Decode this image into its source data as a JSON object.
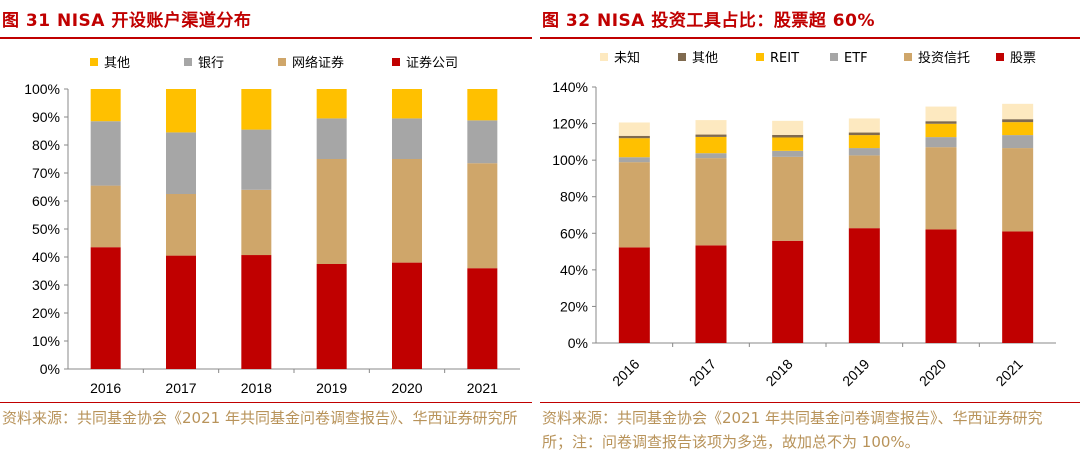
{
  "left": {
    "title": "图 31  NISA 开设账户渠道分布",
    "source": "资料来源：共同基金协会《2021 年共同基金问卷调查报告》、华西证券研究所",
    "chart_data": {
      "type": "bar",
      "stacked": true,
      "categories": [
        "2016",
        "2017",
        "2018",
        "2019",
        "2020",
        "2021"
      ],
      "ylim": [
        0,
        100
      ],
      "yticks": [
        "0%",
        "10%",
        "20%",
        "30%",
        "40%",
        "50%",
        "60%",
        "70%",
        "80%",
        "90%",
        "100%"
      ],
      "legend_position": "top",
      "series": [
        {
          "name": "证券公司",
          "color": "#c00000",
          "values": [
            43.5,
            40.5,
            40.7,
            37.5,
            38,
            36
          ]
        },
        {
          "name": "网络证券",
          "color": "#cfa66a",
          "values": [
            22,
            22,
            23.3,
            37.5,
            37,
            37.5
          ]
        },
        {
          "name": "银行",
          "color": "#a6a6a6",
          "values": [
            23,
            22,
            21.5,
            14.5,
            14.5,
            15.3
          ]
        },
        {
          "name": "其他",
          "color": "#ffc000",
          "values": [
            11.5,
            15.5,
            14.5,
            10.5,
            10.5,
            11.2
          ]
        }
      ]
    }
  },
  "right": {
    "title": "图 32  NISA 投资工具占比：股票超 60%",
    "source": "资料来源：共同基金协会《2021 年共同基金问卷调查报告》、华西证券研究所；注：问卷调查报告该项为多选，故加总不为 100%。",
    "chart_data": {
      "type": "bar",
      "stacked": true,
      "categories": [
        "2016",
        "2017",
        "2018",
        "2019",
        "2020",
        "2021"
      ],
      "ylim": [
        0,
        140
      ],
      "yticks": [
        "0%",
        "20%",
        "40%",
        "60%",
        "80%",
        "100%",
        "120%",
        "140%"
      ],
      "legend_position": "top",
      "series": [
        {
          "name": "股票",
          "color": "#c00000",
          "values": [
            52.3,
            53.4,
            55.9,
            62.8,
            62.1,
            61
          ]
        },
        {
          "name": "投资信托",
          "color": "#cfa66a",
          "values": [
            46.6,
            47.7,
            45.9,
            39.8,
            45,
            45.6
          ]
        },
        {
          "name": "ETF",
          "color": "#a6a6a6",
          "values": [
            2.7,
            2.7,
            3.3,
            4,
            5.5,
            7.1
          ]
        },
        {
          "name": "REIT",
          "color": "#ffc000",
          "values": [
            10.4,
            8.9,
            7.3,
            7.1,
            7.3,
            7.1
          ]
        },
        {
          "name": "其他",
          "color": "#7f6a4f",
          "values": [
            1.3,
            1.3,
            1.4,
            1.4,
            1.4,
            1.6
          ]
        },
        {
          "name": "未知",
          "color": "#fde9c0",
          "values": [
            7.3,
            7.9,
            7.7,
            7.7,
            8,
            8.4
          ]
        }
      ]
    }
  }
}
